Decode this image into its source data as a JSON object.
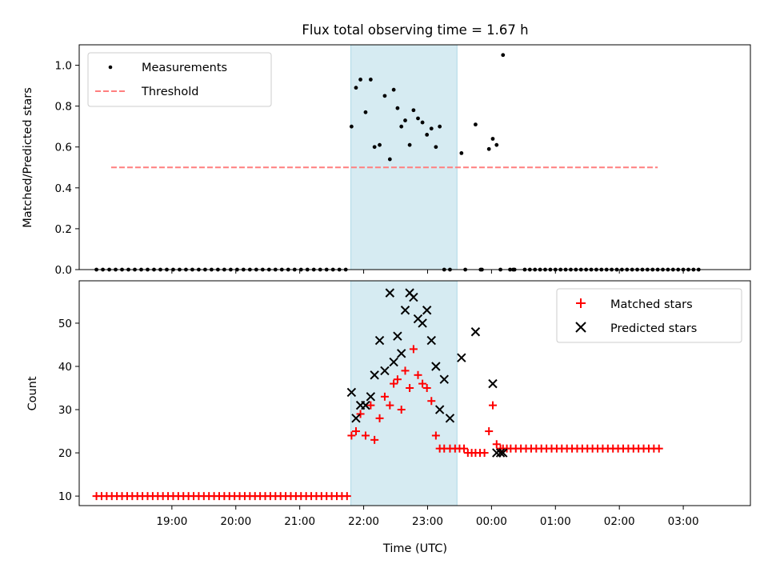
{
  "figure": {
    "background": "#ffffff",
    "xlabel": "Time (UTC)"
  },
  "chart_data": [
    {
      "type": "scatter",
      "title": "Flux total observing time = 1.67 h",
      "xlabel": "",
      "ylabel": "Matched/Predicted stars",
      "xlim": [
        -0.95,
        9.55
      ],
      "ylim": [
        0,
        1.1
      ],
      "x_ticks": [
        0.5,
        1.5,
        2.5,
        3.5,
        4.5,
        5.5,
        6.5,
        7.5,
        8.5
      ],
      "x_ticklabels": [],
      "y_ticks": [
        0,
        0.2,
        0.4,
        0.6,
        0.8,
        1.0
      ],
      "y_ticklabels": [
        "0.0",
        "0.2",
        "0.4",
        "0.6",
        "0.8",
        "1.0"
      ],
      "grid": false,
      "legend_position": "upper-left",
      "shaded_region": {
        "x0": 3.3,
        "x1": 4.96,
        "color": "#add8e6",
        "alpha": 0.5
      },
      "series": [
        {
          "name": "Measurements",
          "marker": "dot",
          "color": "#000000",
          "x": [
            -0.68,
            -0.58,
            -0.48,
            -0.38,
            -0.28,
            -0.18,
            -0.08,
            0.02,
            0.12,
            0.22,
            0.32,
            0.42,
            0.52,
            0.62,
            0.72,
            0.82,
            0.92,
            1.02,
            1.12,
            1.22,
            1.32,
            1.42,
            1.52,
            1.62,
            1.72,
            1.82,
            1.92,
            2.02,
            2.12,
            2.22,
            2.32,
            2.42,
            2.52,
            2.62,
            2.72,
            2.82,
            2.92,
            3.02,
            3.12,
            3.22,
            3.31,
            3.38,
            3.45,
            3.53,
            3.61,
            3.67,
            3.75,
            3.83,
            3.91,
            3.97,
            4.03,
            4.09,
            4.15,
            4.22,
            4.28,
            4.35,
            4.42,
            4.49,
            4.56,
            4.63,
            4.69,
            4.76,
            4.85,
            5.03,
            5.09,
            5.25,
            5.33,
            5.35,
            5.46,
            5.52,
            5.58,
            5.64,
            5.68,
            5.79,
            5.84,
            5.86,
            6.02,
            6.1,
            6.18,
            6.26,
            6.34,
            6.42,
            6.5,
            6.58,
            6.66,
            6.74,
            6.82,
            6.9,
            6.98,
            7.06,
            7.14,
            7.22,
            7.3,
            7.38,
            7.46,
            7.54,
            7.62,
            7.7,
            7.78,
            7.86,
            7.94,
            8.02,
            8.1,
            8.18,
            8.26,
            8.34,
            8.42,
            8.5,
            8.58,
            8.66,
            8.74
          ],
          "y": [
            0,
            0,
            0,
            0,
            0,
            0,
            0,
            0,
            0,
            0,
            0,
            0,
            0,
            0,
            0,
            0,
            0,
            0,
            0,
            0,
            0,
            0,
            0,
            0,
            0,
            0,
            0,
            0,
            0,
            0,
            0,
            0,
            0,
            0,
            0,
            0,
            0,
            0,
            0,
            0,
            0.7,
            0.89,
            0.93,
            0.77,
            0.93,
            0.6,
            0.61,
            0.85,
            0.54,
            0.88,
            0.79,
            0.7,
            0.73,
            0.61,
            0.78,
            0.74,
            0.72,
            0.66,
            0.69,
            0.6,
            0.7,
            0,
            0,
            0.57,
            0,
            0.71,
            0,
            0,
            0.59,
            0.64,
            0.61,
            0,
            1.05,
            0,
            0,
            0,
            0,
            0,
            0,
            0,
            0,
            0,
            0,
            0,
            0,
            0,
            0,
            0,
            0,
            0,
            0,
            0,
            0,
            0,
            0,
            0,
            0,
            0,
            0,
            0,
            0,
            0,
            0,
            0,
            0,
            0,
            0,
            0,
            0,
            0,
            0
          ]
        },
        {
          "name": "Threshold",
          "marker": "dashed-line",
          "color": "#ff7f7f",
          "x": [
            -0.45,
            8.1
          ],
          "y": [
            0.5,
            0.5
          ]
        }
      ]
    },
    {
      "type": "scatter",
      "title": "",
      "xlabel": "Time (UTC)",
      "ylabel": "Count",
      "xlim": [
        -0.95,
        9.55
      ],
      "ylim": [
        7.8,
        59.8
      ],
      "x_ticks": [
        0.5,
        1.5,
        2.5,
        3.5,
        4.5,
        5.5,
        6.5,
        7.5,
        8.5
      ],
      "x_ticklabels": [
        "19:00",
        "20:00",
        "21:00",
        "22:00",
        "23:00",
        "00:00",
        "01:00",
        "02:00",
        "03:00"
      ],
      "y_ticks": [
        10,
        20,
        30,
        40,
        50
      ],
      "y_ticklabels": [
        "10",
        "20",
        "30",
        "40",
        "50"
      ],
      "grid": false,
      "legend_position": "upper-right",
      "shaded_region": {
        "x0": 3.3,
        "x1": 4.96,
        "color": "#add8e6",
        "alpha": 0.5
      },
      "series": [
        {
          "name": "Matched stars",
          "marker": "plus",
          "color": "#ff0000",
          "x": [
            -0.68,
            -0.6,
            -0.52,
            -0.44,
            -0.36,
            -0.28,
            -0.2,
            -0.12,
            -0.04,
            0.04,
            0.12,
            0.2,
            0.28,
            0.36,
            0.44,
            0.52,
            0.6,
            0.68,
            0.76,
            0.84,
            0.92,
            1.0,
            1.08,
            1.16,
            1.24,
            1.32,
            1.4,
            1.48,
            1.56,
            1.64,
            1.72,
            1.8,
            1.88,
            1.96,
            2.04,
            2.12,
            2.2,
            2.28,
            2.36,
            2.44,
            2.52,
            2.6,
            2.68,
            2.76,
            2.84,
            2.92,
            3.0,
            3.08,
            3.16,
            3.24,
            3.31,
            3.38,
            3.45,
            3.53,
            3.61,
            3.67,
            3.75,
            3.83,
            3.91,
            3.97,
            4.03,
            4.09,
            4.15,
            4.22,
            4.28,
            4.35,
            4.42,
            4.49,
            4.56,
            4.63,
            4.69,
            4.76,
            4.85,
            4.93,
            5.0,
            5.07,
            5.13,
            5.19,
            5.25,
            5.32,
            5.39,
            5.46,
            5.52,
            5.58,
            5.64,
            5.68,
            5.74,
            5.8,
            5.88,
            5.96,
            6.04,
            6.12,
            6.2,
            6.28,
            6.36,
            6.44,
            6.52,
            6.6,
            6.68,
            6.76,
            6.84,
            6.92,
            7.0,
            7.08,
            7.16,
            7.24,
            7.32,
            7.4,
            7.48,
            7.56,
            7.64,
            7.72,
            7.8,
            7.88,
            7.96,
            8.04,
            8.12
          ],
          "y": [
            10,
            10,
            10,
            10,
            10,
            10,
            10,
            10,
            10,
            10,
            10,
            10,
            10,
            10,
            10,
            10,
            10,
            10,
            10,
            10,
            10,
            10,
            10,
            10,
            10,
            10,
            10,
            10,
            10,
            10,
            10,
            10,
            10,
            10,
            10,
            10,
            10,
            10,
            10,
            10,
            10,
            10,
            10,
            10,
            10,
            10,
            10,
            10,
            10,
            10,
            24,
            25,
            29,
            24,
            31,
            23,
            28,
            33,
            31,
            36,
            37,
            30,
            39,
            35,
            44,
            38,
            36,
            35,
            32,
            24,
            21,
            21,
            21,
            21,
            21,
            21,
            20,
            20,
            20,
            20,
            20,
            25,
            31,
            22,
            21,
            21,
            21,
            21,
            21,
            21,
            21,
            21,
            21,
            21,
            21,
            21,
            21,
            21,
            21,
            21,
            21,
            21,
            21,
            21,
            21,
            21,
            21,
            21,
            21,
            21,
            21,
            21,
            21,
            21,
            21,
            21,
            21
          ]
        },
        {
          "name": "Predicted stars",
          "marker": "x",
          "color": "#000000",
          "x": [
            3.31,
            3.38,
            3.45,
            3.53,
            3.61,
            3.67,
            3.75,
            3.83,
            3.91,
            3.97,
            4.03,
            4.09,
            4.15,
            4.22,
            4.28,
            4.35,
            4.42,
            4.49,
            4.56,
            4.63,
            4.69,
            4.76,
            4.85,
            5.03,
            5.25,
            5.52,
            5.58,
            5.64,
            5.68
          ],
          "y": [
            34,
            28,
            31,
            31,
            33,
            38,
            46,
            39,
            57,
            41,
            47,
            43,
            53,
            57,
            56,
            51,
            50,
            53,
            46,
            40,
            30,
            37,
            28,
            42,
            48,
            36,
            20,
            20,
            20
          ]
        }
      ]
    }
  ]
}
